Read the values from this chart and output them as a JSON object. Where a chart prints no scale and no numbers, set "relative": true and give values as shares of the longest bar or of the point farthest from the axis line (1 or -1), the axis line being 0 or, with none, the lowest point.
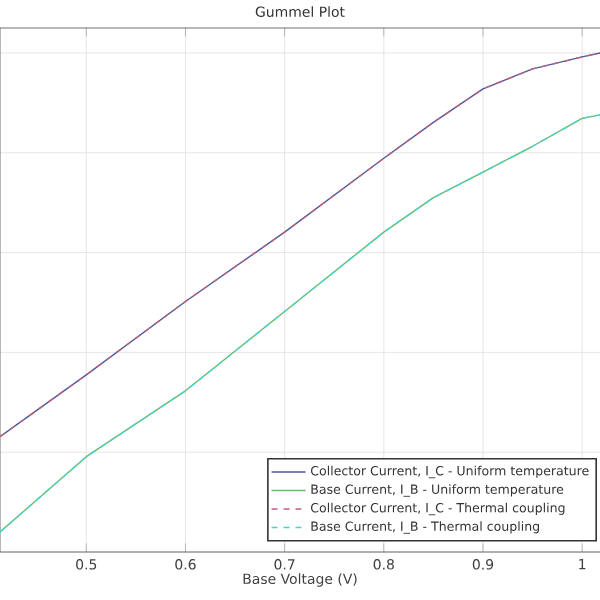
{
  "chart_data": {
    "type": "line",
    "title": "Gummel Plot",
    "xlabel": "Base Voltage (V)",
    "relative": true,
    "x": [
      0.413,
      0.5,
      0.6,
      0.7,
      0.8,
      0.85,
      0.9,
      0.95,
      1.0,
      1.018
    ],
    "series": [
      {
        "name": "Collector Current, I_C - Uniform temperature",
        "color": "#4a5aa0",
        "values": [
          0.231,
          0.355,
          0.502,
          0.641,
          0.789,
          0.861,
          0.928,
          0.968,
          0.992,
          1.0
        ]
      },
      {
        "name": "Base Current, I_B - Uniform temperature",
        "color": "#6cb86c",
        "values": [
          0.04,
          0.191,
          0.323,
          0.482,
          0.641,
          0.71,
          0.761,
          0.813,
          0.869,
          0.876
        ]
      },
      {
        "name": "Collector Current, I_C - Thermal coupling",
        "color": "#c0607a",
        "line_style": "dashed",
        "values": [
          0.231,
          0.355,
          0.502,
          0.641,
          0.789,
          0.861,
          0.928,
          0.968,
          0.992,
          1.0
        ]
      },
      {
        "name": "Base Current, I_B - Thermal coupling",
        "color": "#40d8c8",
        "line_style": "dashed",
        "values": [
          0.04,
          0.191,
          0.323,
          0.482,
          0.641,
          0.71,
          0.761,
          0.813,
          0.869,
          0.876
        ]
      }
    ],
    "xlim": [
      0.413,
      1.018
    ],
    "xticks": [
      0.5,
      0.6,
      0.7,
      0.8,
      0.9,
      {
        "value": 1.0,
        "label": "1"
      }
    ],
    "grid": true,
    "legend": "bottom right",
    "line_style": "solid",
    "marker": "none"
  }
}
